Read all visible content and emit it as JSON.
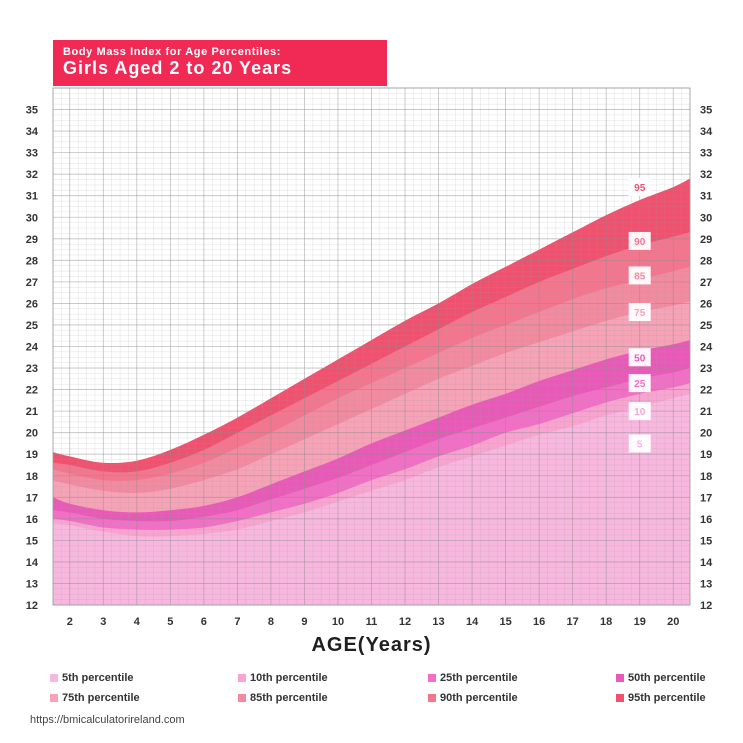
{
  "chart_data": {
    "type": "area",
    "title": "Body Mass Index for Age Percentiles:",
    "subtitle": "Girls Aged 2 to 20 Years",
    "xlabel": "AGE(Years)",
    "ylabel": "",
    "xlim": [
      1.5,
      20.5
    ],
    "ylim": [
      12,
      36
    ],
    "x_ticks": [
      2,
      3,
      4,
      5,
      6,
      7,
      8,
      9,
      10,
      11,
      12,
      13,
      14,
      15,
      16,
      17,
      18,
      19,
      20
    ],
    "y_ticks": [
      12,
      13,
      14,
      15,
      16,
      17,
      18,
      19,
      20,
      21,
      22,
      23,
      24,
      25,
      26,
      27,
      28,
      29,
      30,
      31,
      32,
      33,
      34,
      35
    ],
    "grid": true,
    "x": [
      1.5,
      2,
      3,
      4,
      5,
      6,
      7,
      8,
      9,
      10,
      11,
      12,
      13,
      14,
      15,
      16,
      17,
      18,
      19,
      20,
      20.5
    ],
    "series": [
      {
        "name": "5th percentile",
        "label": "5",
        "color": "#f7b7de",
        "values": [
          15.8,
          15.7,
          15.4,
          15.2,
          15.2,
          15.3,
          15.5,
          15.9,
          16.3,
          16.8,
          17.3,
          17.8,
          18.4,
          18.9,
          19.4,
          19.9,
          20.3,
          20.8,
          21.2,
          21.6,
          21.8
        ]
      },
      {
        "name": "10th percentile",
        "label": "10",
        "color": "#f9a4d0",
        "values": [
          16.0,
          15.9,
          15.6,
          15.5,
          15.5,
          15.6,
          15.9,
          16.3,
          16.7,
          17.2,
          17.8,
          18.3,
          18.9,
          19.4,
          20.0,
          20.4,
          20.9,
          21.4,
          21.8,
          22.1,
          22.3
        ]
      },
      {
        "name": "25th percentile",
        "label": "25",
        "color": "#f26fc6",
        "values": [
          16.4,
          16.3,
          16.0,
          15.9,
          15.9,
          16.1,
          16.4,
          16.9,
          17.4,
          17.9,
          18.5,
          19.1,
          19.7,
          20.2,
          20.7,
          21.2,
          21.7,
          22.1,
          22.5,
          22.8,
          23.0
        ]
      },
      {
        "name": "50th percentile",
        "label": "50",
        "color": "#e95ab8",
        "values": [
          17.0,
          16.7,
          16.4,
          16.3,
          16.4,
          16.6,
          17.0,
          17.6,
          18.2,
          18.8,
          19.5,
          20.1,
          20.7,
          21.3,
          21.8,
          22.4,
          22.9,
          23.4,
          23.8,
          24.1,
          24.3
        ]
      },
      {
        "name": "75th percentile",
        "label": "75",
        "color": "#f6a2b7",
        "values": [
          17.8,
          17.6,
          17.3,
          17.2,
          17.4,
          17.8,
          18.3,
          19.0,
          19.7,
          20.4,
          21.1,
          21.8,
          22.5,
          23.1,
          23.7,
          24.2,
          24.7,
          25.2,
          25.6,
          25.9,
          26.1
        ]
      },
      {
        "name": "85th percentile",
        "label": "85",
        "color": "#f28aa0",
        "values": [
          18.3,
          18.1,
          17.8,
          17.8,
          18.1,
          18.6,
          19.3,
          20.0,
          20.8,
          21.6,
          22.3,
          23.0,
          23.7,
          24.4,
          25.0,
          25.6,
          26.2,
          26.7,
          27.1,
          27.5,
          27.7
        ]
      },
      {
        "name": "90th percentile",
        "label": "90",
        "color": "#f4768e",
        "values": [
          18.6,
          18.5,
          18.2,
          18.2,
          18.6,
          19.2,
          20.0,
          20.8,
          21.6,
          22.4,
          23.2,
          24.0,
          24.8,
          25.6,
          26.3,
          27.0,
          27.6,
          28.2,
          28.7,
          29.1,
          29.3
        ]
      },
      {
        "name": "95th percentile",
        "label": "95",
        "color": "#f0516f",
        "values": [
          19.1,
          18.9,
          18.6,
          18.7,
          19.2,
          19.9,
          20.7,
          21.6,
          22.5,
          23.4,
          24.3,
          25.2,
          26.0,
          26.9,
          27.7,
          28.5,
          29.3,
          30.1,
          30.8,
          31.4,
          31.8
        ]
      }
    ],
    "band_label_x": 19,
    "band_label_y": [
      19.5,
      21.0,
      22.3,
      23.5,
      25.6,
      27.3,
      28.9,
      31.4
    ],
    "legend": "bottom",
    "source": "https://bmicalculatorireland.com"
  }
}
